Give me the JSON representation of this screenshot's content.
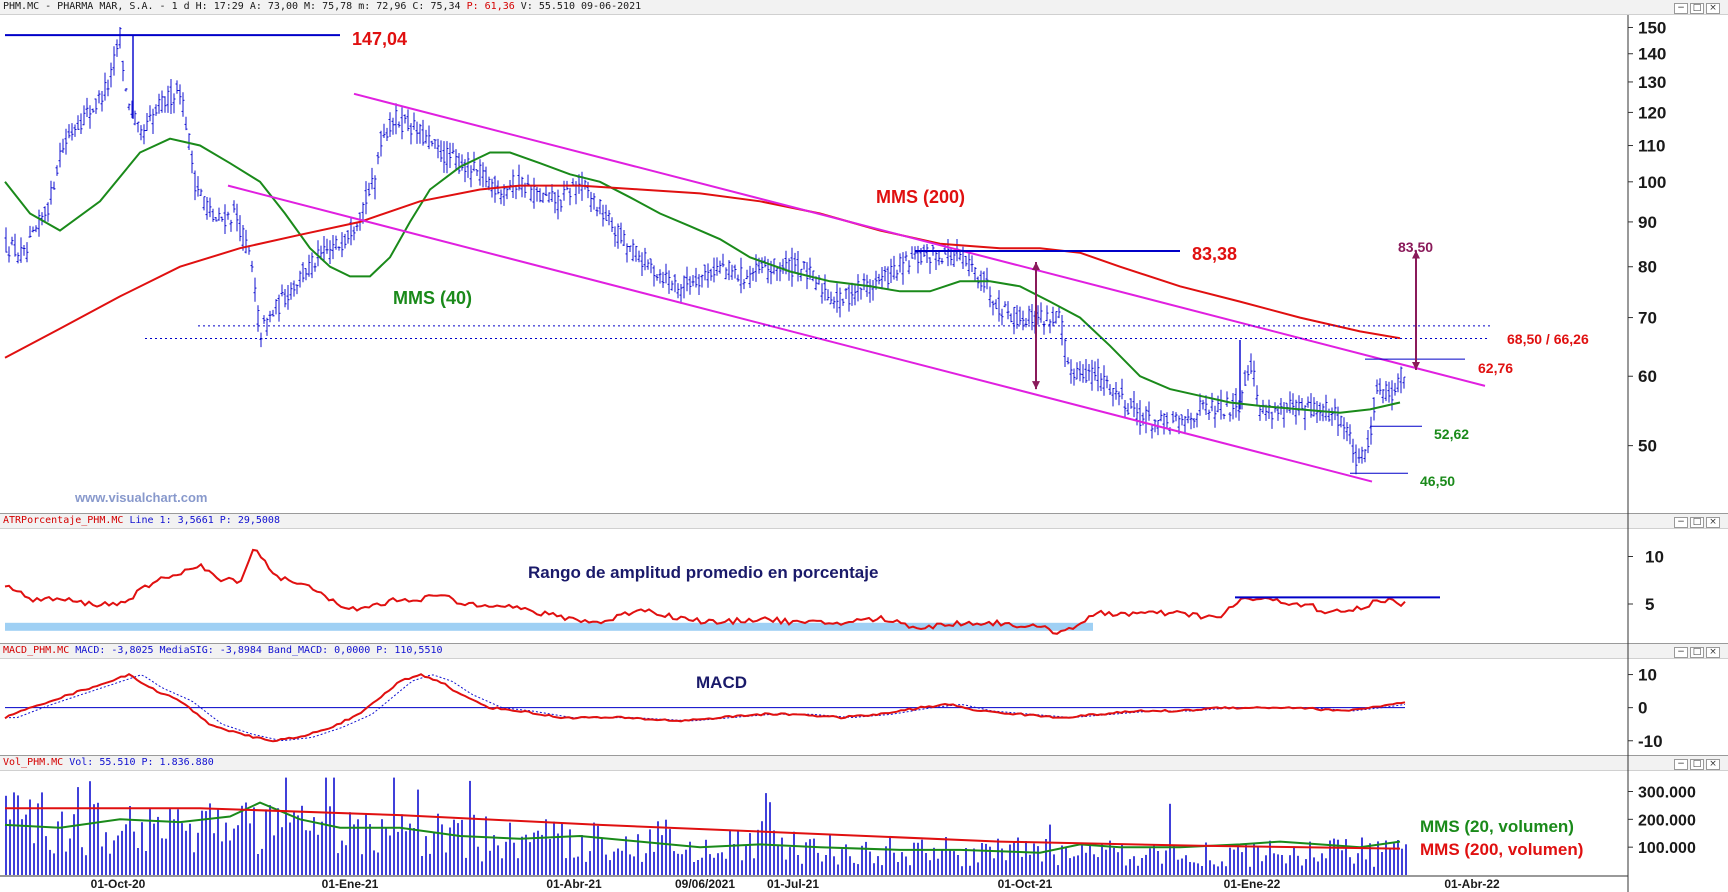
{
  "headers": {
    "price": {
      "main": "PHM.MC - PHARMA MAR, S.A. -  1 d  H: 17:29  A: 73,00  M: 75,78  m: 72,96  C: 75,34",
      "p": "P: 61,36",
      "v": "V: 55.510  09-06-2021"
    },
    "atr": {
      "name": "ATRPorcentaje_PHM.MC",
      "values": "Line 1: 3,5661  P: 29,5008"
    },
    "macd": {
      "name": "MACD_PHM.MC",
      "values": "MACD: -3,8025  MediaSIG: -3,8984  Band_MACD: 0,0000  P: 110,5510"
    },
    "vol": {
      "name": "Vol_PHM.MC",
      "values": "Vol: 55.510  P: 1.836.880"
    }
  },
  "pane_controls": [
    "−",
    "□",
    "×"
  ],
  "colors": {
    "price": "#1010d0",
    "mma40": "#1a8a1a",
    "mma200": "#e01010",
    "channel": "#e020e0",
    "purple": "#8a1a5a",
    "blue_line": "#0000c8",
    "red_label": "#e01010",
    "green_label": "#1a8a1a"
  },
  "chart_data": [
    {
      "type": "line",
      "pane": "price",
      "series": [
        {
          "name": "MMS (40)"
        },
        {
          "name": "MMS (200)"
        }
      ],
      "ylim": [
        42,
        155
      ],
      "yscale": "log",
      "yticks": [
        "150",
        "140",
        "130",
        "120",
        "110",
        "100",
        "90",
        "80",
        "70",
        "60",
        "50"
      ],
      "xtick_labels": [
        "01-Oct-20",
        "01-Ene-21",
        "01-Abr-21",
        "09/06/2021",
        "01-Jul-21",
        "01-Oct-21",
        "01-Ene-22",
        "01-Abr-22"
      ],
      "annotations": {
        "high": "147,04",
        "resistance": "83,38",
        "target": "83,50",
        "range": "68,50 / 66,26",
        "level_a": "62,76",
        "level_b": "52,62",
        "low": "46,50",
        "mma200_label": "MMS (200)",
        "mma40_label": "MMS (40)",
        "watermark": "www.visualchart.com"
      }
    },
    {
      "type": "line",
      "pane": "atr",
      "title": "Rango de amplitud promedio en porcentaje",
      "ylim": [
        1,
        13
      ],
      "yticks": [
        "10",
        "5"
      ]
    },
    {
      "type": "line",
      "pane": "macd",
      "title": "MACD",
      "ylim": [
        -14,
        15
      ],
      "yticks": [
        "10",
        "0",
        "-10"
      ]
    },
    {
      "type": "bar",
      "pane": "volume",
      "ylim": [
        0,
        370000
      ],
      "yticks": [
        "300.000",
        "200.000",
        "100.000"
      ],
      "series": [
        {
          "name": "MMS (20, volumen)"
        },
        {
          "name": "MMS (200, volumen)"
        }
      ]
    }
  ]
}
